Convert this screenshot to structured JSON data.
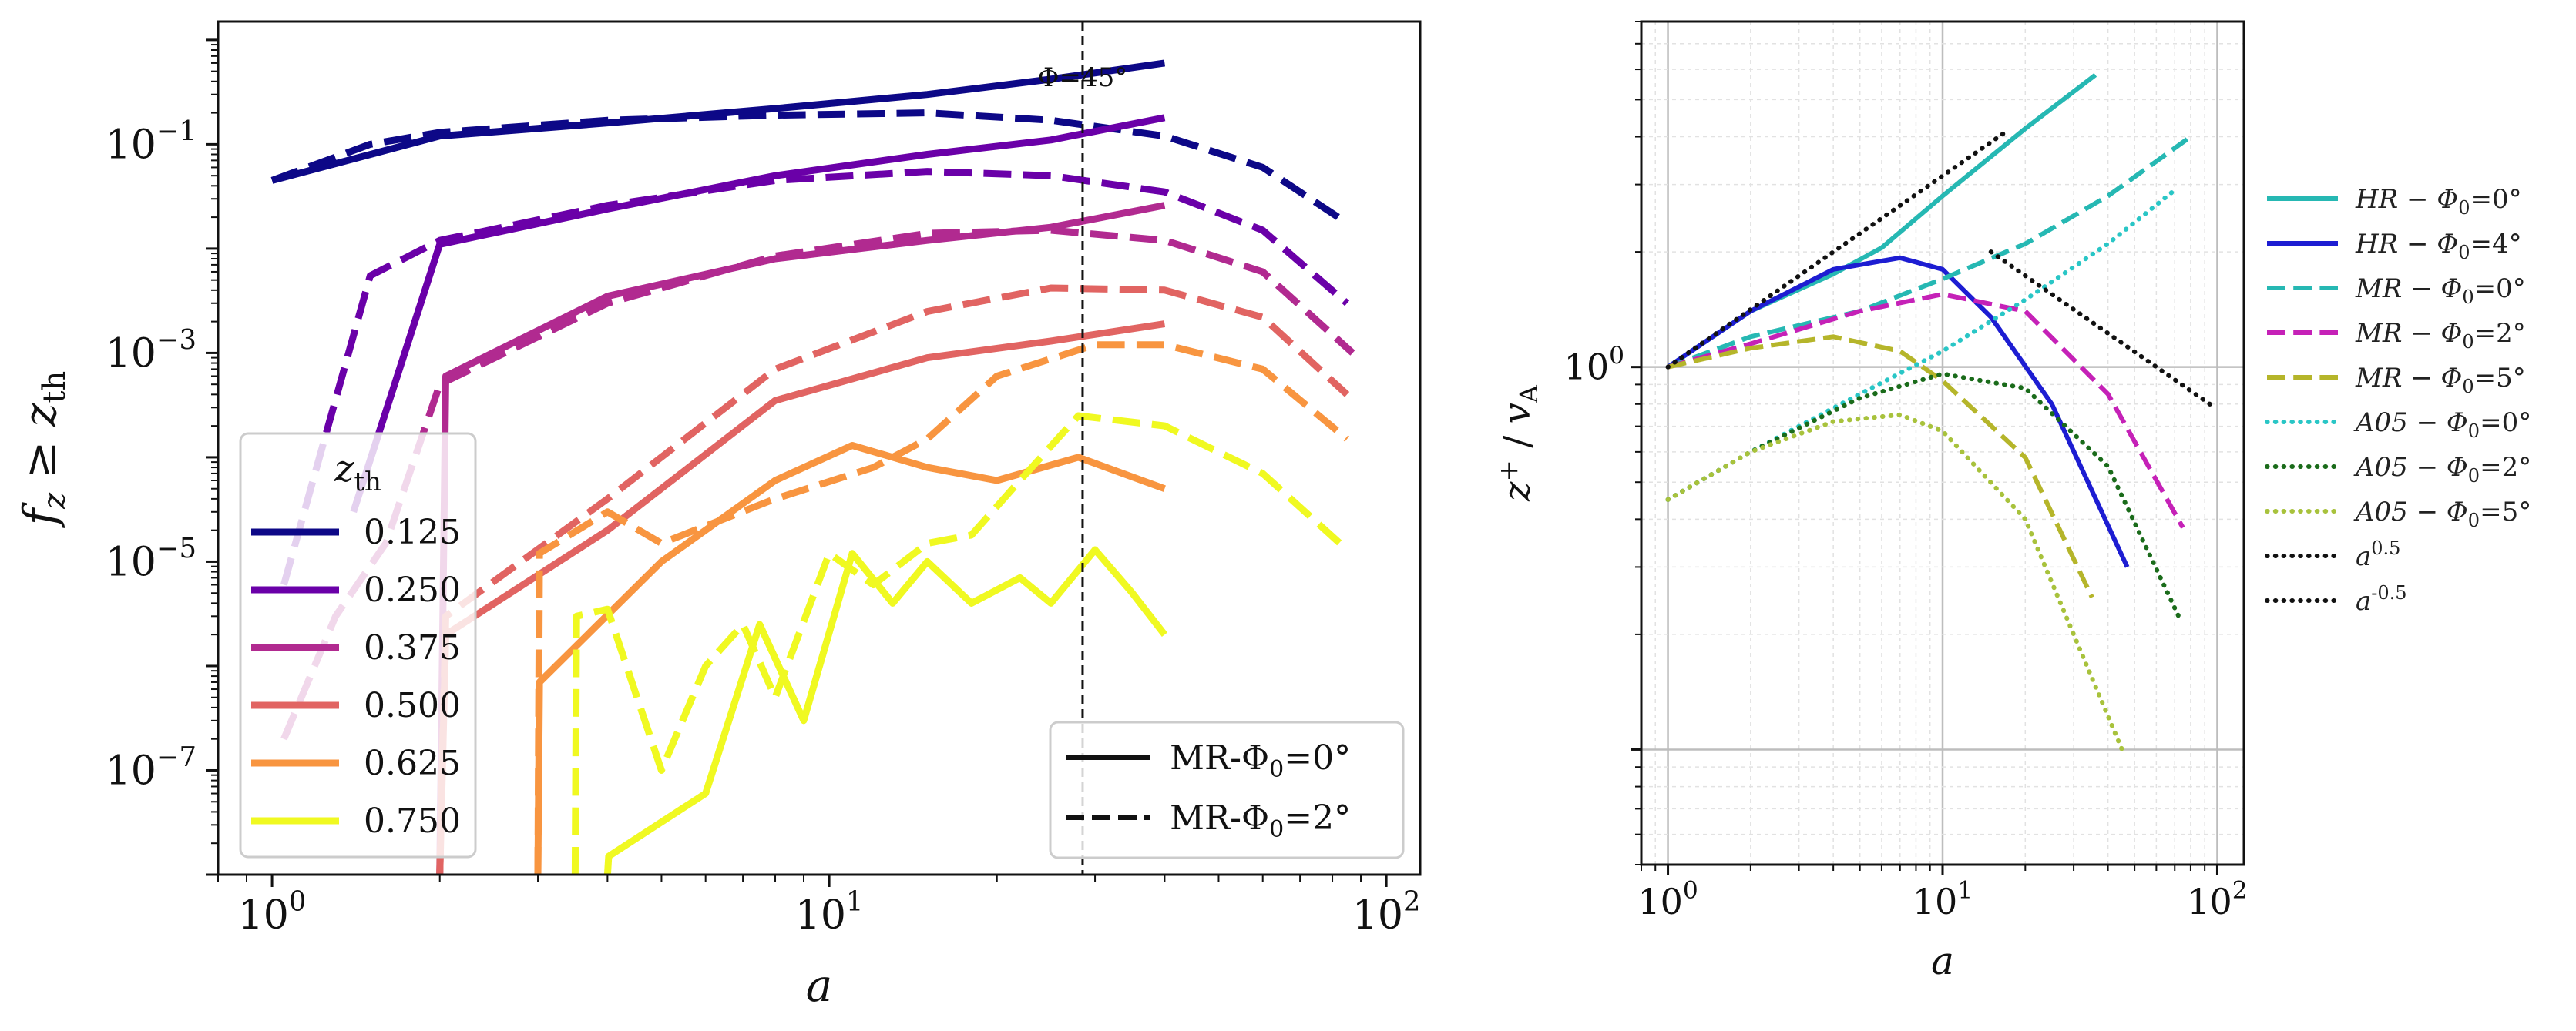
{
  "chart_data": [
    {
      "type": "line",
      "xscale": "log",
      "yscale": "log",
      "xlim": [
        0.8,
        115
      ],
      "ylim": [
        1e-08,
        1.5
      ],
      "xlabel": "a",
      "ylabel": "f_z ≥ z_th",
      "xticks": [
        {
          "value": 1,
          "base": "10",
          "exp": "0"
        },
        {
          "value": 10,
          "base": "10",
          "exp": "1"
        },
        {
          "value": 100,
          "base": "10",
          "exp": "2"
        }
      ],
      "yticks": [
        {
          "value": 0.1,
          "base": "10",
          "exp": "−1"
        },
        {
          "value": 0.001,
          "base": "10",
          "exp": "−3"
        },
        {
          "value": 1e-05,
          "base": "10",
          "exp": "−5"
        },
        {
          "value": 1e-07,
          "base": "10",
          "exp": "−7"
        }
      ],
      "vline": {
        "x": 28.5,
        "label": "Φ=45°"
      },
      "legend_zth": {
        "title": "z_th",
        "entries": [
          "0.125",
          "0.250",
          "0.375",
          "0.500",
          "0.625",
          "0.750"
        ]
      },
      "legend_style": {
        "entries": [
          "MR-Φ0=0°",
          "MR-Φ0=2°"
        ]
      },
      "series": [
        {
          "name": "0.125",
          "style": "solid",
          "color": "#0d0887",
          "x": [
            1,
            2,
            4,
            8,
            15,
            25,
            40
          ],
          "y": [
            0.045,
            0.12,
            0.16,
            0.22,
            0.3,
            0.42,
            0.6
          ]
        },
        {
          "name": "0.125",
          "style": "dashed",
          "color": "#0d0887",
          "x": [
            1,
            1.5,
            2,
            4,
            8,
            15,
            25,
            40,
            60,
            82
          ],
          "y": [
            0.045,
            0.1,
            0.13,
            0.17,
            0.19,
            0.2,
            0.17,
            0.12,
            0.06,
            0.02
          ]
        },
        {
          "name": "0.250",
          "style": "solid",
          "color": "#6a00a8",
          "x": [
            1.4,
            2,
            4,
            8,
            15,
            25,
            40
          ],
          "y": [
            3e-05,
            0.011,
            0.024,
            0.05,
            0.08,
            0.11,
            0.18
          ]
        },
        {
          "name": "0.250",
          "style": "dashed",
          "color": "#6a00a8",
          "x": [
            1.05,
            1.5,
            2,
            4,
            8,
            15,
            25,
            40,
            60,
            85
          ],
          "y": [
            6e-06,
            0.0055,
            0.012,
            0.026,
            0.045,
            0.055,
            0.05,
            0.035,
            0.015,
            0.003
          ]
        },
        {
          "name": "0.375",
          "style": "solid",
          "color": "#b12a90",
          "x": [
            2,
            2.05,
            4,
            8,
            15,
            25,
            40
          ],
          "y": [
            1e-08,
            0.0006,
            0.0035,
            0.008,
            0.012,
            0.016,
            0.026
          ]
        },
        {
          "name": "0.375",
          "style": "dashed",
          "color": "#b12a90",
          "x": [
            1.05,
            1.3,
            1.6,
            2,
            4,
            8,
            15,
            25,
            40,
            60,
            87
          ],
          "y": [
            2e-07,
            3e-06,
            1.5e-05,
            0.0005,
            0.003,
            0.0085,
            0.014,
            0.015,
            0.012,
            0.006,
            0.001
          ]
        },
        {
          "name": "0.500",
          "style": "solid",
          "color": "#e16462",
          "x": [
            2,
            2.05,
            4,
            8,
            15,
            25,
            40
          ],
          "y": [
            1e-08,
            2e-06,
            2e-05,
            0.00035,
            0.0009,
            0.0013,
            0.0019
          ]
        },
        {
          "name": "0.500",
          "style": "dashed",
          "color": "#e16462",
          "x": [
            2,
            2.05,
            4,
            8,
            15,
            25,
            40,
            60,
            85
          ],
          "y": [
            1e-08,
            3e-06,
            4e-05,
            0.0007,
            0.0025,
            0.0042,
            0.004,
            0.0022,
            0.0004
          ]
        },
        {
          "name": "0.625",
          "style": "solid",
          "color": "#f89540",
          "x": [
            3,
            3.02,
            5,
            8,
            11,
            15,
            20,
            28,
            40
          ],
          "y": [
            1e-08,
            7e-07,
            1e-05,
            6e-05,
            0.00013,
            8e-05,
            6e-05,
            0.0001,
            5e-05
          ]
        },
        {
          "name": "0.625",
          "style": "dashed",
          "color": "#f89540",
          "x": [
            3,
            3.02,
            4,
            5,
            8,
            12,
            15,
            20,
            30,
            40,
            60,
            85
          ],
          "y": [
            1e-08,
            1.2e-05,
            3e-05,
            1.5e-05,
            4e-05,
            8e-05,
            0.00015,
            0.0006,
            0.0012,
            0.0012,
            0.0007,
            0.00015
          ]
        },
        {
          "name": "0.750",
          "style": "solid",
          "color": "#f0f921",
          "x": [
            4,
            4.02,
            6,
            7.5,
            9,
            11,
            13,
            15,
            18,
            22,
            25,
            30,
            35,
            40
          ],
          "y": [
            1e-08,
            1.5e-08,
            6e-08,
            2.5e-06,
            3e-07,
            1.2e-05,
            4e-06,
            1e-05,
            4e-06,
            7e-06,
            4e-06,
            1.3e-05,
            5e-06,
            2e-06
          ]
        },
        {
          "name": "0.750",
          "style": "dashed",
          "color": "#f0f921",
          "x": [
            3.5,
            3.52,
            4,
            5,
            6,
            7,
            8,
            10,
            12,
            15,
            18,
            22,
            28,
            40,
            60,
            85
          ],
          "y": [
            1e-08,
            3e-06,
            3.5e-06,
            1e-07,
            1e-06,
            2.5e-06,
            5e-07,
            1.2e-05,
            6e-06,
            1.5e-05,
            1.8e-05,
            6e-05,
            0.00025,
            0.0002,
            7e-05,
            1.3e-05
          ]
        }
      ]
    },
    {
      "type": "line",
      "xscale": "log",
      "yscale": "log",
      "xlim": [
        0.8,
        125
      ],
      "ylim": [
        0.05,
        8
      ],
      "xlabel": "a",
      "ylabel": "z⁺ / v_A",
      "xticks": [
        {
          "value": 1,
          "base": "10",
          "exp": "0"
        },
        {
          "value": 10,
          "base": "10",
          "exp": "1"
        },
        {
          "value": 100,
          "base": "10",
          "exp": "2"
        }
      ],
      "yticks": [
        {
          "value": 1,
          "base": "10",
          "exp": "0"
        }
      ],
      "grid": true,
      "legend": [
        "HR − Φ0=0°",
        "HR − Φ0=4°",
        "MR − Φ0=0°",
        "MR − Φ0=2°",
        "MR − Φ0=5°",
        "A05 − Φ0=0°",
        "A05 − Φ0=2°",
        "A05 − Φ0=5°",
        "a^0.5",
        "a^-0.5"
      ],
      "series": [
        {
          "name": "HR − Φ0=0°",
          "style": "solid",
          "color": "#26b8b3",
          "x": [
            1,
            2,
            4,
            6,
            10,
            20,
            36
          ],
          "y": [
            1,
            1.4,
            1.75,
            2.05,
            2.8,
            4.2,
            5.8
          ]
        },
        {
          "name": "HR − Φ0=4°",
          "style": "solid",
          "color": "#1d1dd2",
          "x": [
            1,
            2,
            4,
            7,
            10,
            15,
            25,
            47
          ],
          "y": [
            1,
            1.4,
            1.8,
            1.93,
            1.8,
            1.35,
            0.8,
            0.3
          ]
        },
        {
          "name": "MR − Φ0=0°",
          "style": "dashed",
          "color": "#26b8b3",
          "x": [
            1,
            2,
            5,
            10,
            20,
            40,
            80
          ],
          "y": [
            1,
            1.2,
            1.4,
            1.7,
            2.1,
            2.8,
            4.0
          ]
        },
        {
          "name": "MR − Φ0=2°",
          "style": "dashed",
          "color": "#c521b7",
          "x": [
            1,
            2,
            5,
            10,
            20,
            40,
            75
          ],
          "y": [
            1,
            1.15,
            1.4,
            1.55,
            1.4,
            0.85,
            0.38
          ]
        },
        {
          "name": "MR − Φ0=5°",
          "style": "dashed",
          "color": "#b5b52a",
          "x": [
            1,
            2,
            4,
            7,
            10,
            20,
            35
          ],
          "y": [
            1,
            1.12,
            1.2,
            1.1,
            0.92,
            0.58,
            0.25
          ]
        },
        {
          "name": "A05 − Φ0=0°",
          "style": "dotted",
          "color": "#29c6c6",
          "x": [
            1,
            2,
            5,
            10,
            20,
            40,
            70
          ],
          "y": [
            0.45,
            0.6,
            0.85,
            1.1,
            1.5,
            2.1,
            2.9
          ]
        },
        {
          "name": "A05 − Φ0=2°",
          "style": "dotted",
          "color": "#1a6b1a",
          "x": [
            1,
            2,
            5,
            10,
            20,
            40,
            73
          ],
          "y": [
            0.45,
            0.6,
            0.83,
            0.96,
            0.88,
            0.55,
            0.22
          ]
        },
        {
          "name": "A05 − Φ0=5°",
          "style": "dotted",
          "color": "#a8c23c",
          "x": [
            1,
            2,
            4,
            7,
            10,
            20,
            45
          ],
          "y": [
            0.45,
            0.6,
            0.72,
            0.75,
            0.68,
            0.4,
            0.1
          ]
        },
        {
          "name": "a^0.5",
          "style": "dotted",
          "color": "#111111",
          "x": [
            1,
            17.5
          ],
          "y": [
            1,
            4.18
          ]
        },
        {
          "name": "a^-0.5",
          "style": "dotted",
          "color": "#111111",
          "x": [
            15,
            95
          ],
          "y": [
            2.0,
            0.795
          ]
        }
      ]
    }
  ]
}
